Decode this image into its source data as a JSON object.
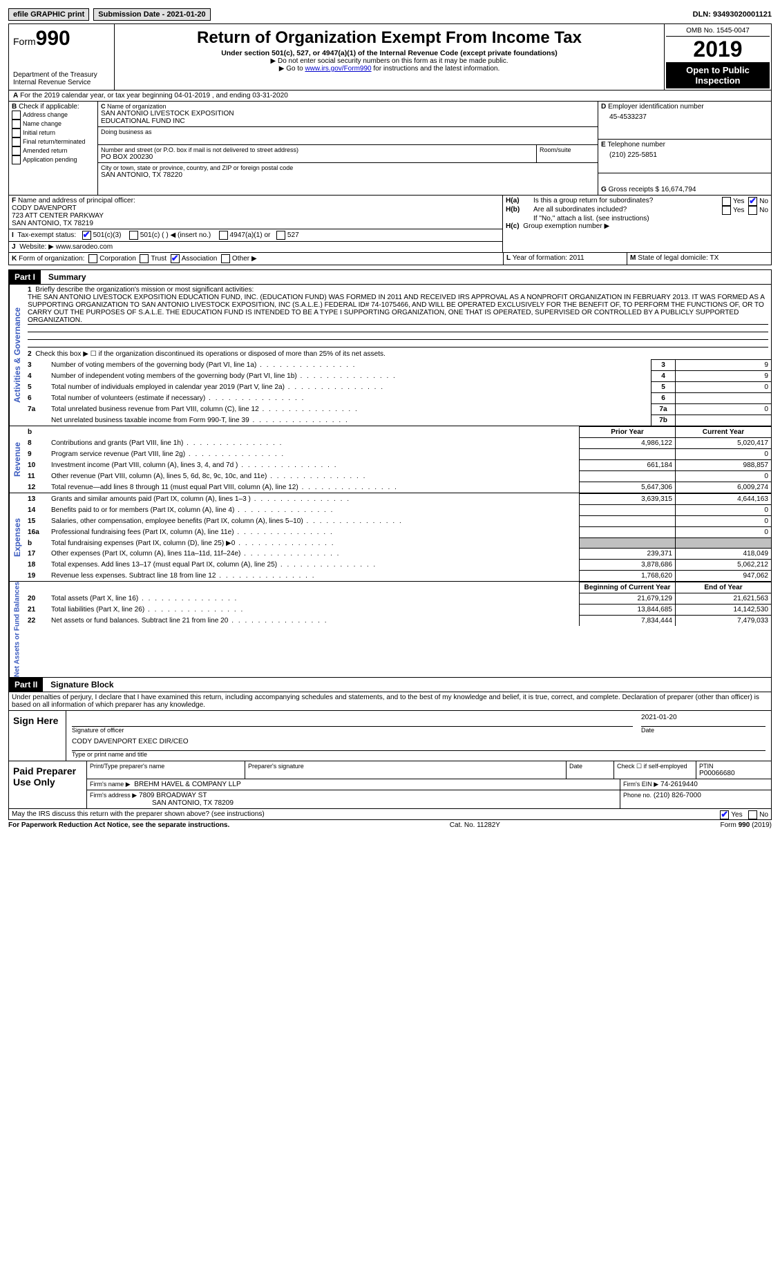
{
  "topbar": {
    "efile": "efile GRAPHIC print",
    "subdate_label": "Submission Date - 2021-01-20",
    "dln": "DLN: 93493020001121"
  },
  "header": {
    "form_label": "Form",
    "form_no": "990",
    "dept": "Department of the Treasury\nInternal Revenue Service",
    "title": "Return of Organization Exempt From Income Tax",
    "sub": "Under section 501(c), 527, or 4947(a)(1) of the Internal Revenue Code (except private foundations)",
    "note1": "▶ Do not enter social security numbers on this form as it may be made public.",
    "note2_pre": "▶ Go to ",
    "note2_link": "www.irs.gov/Form990",
    "note2_post": " for instructions and the latest information.",
    "omb": "OMB No. 1545-0047",
    "year": "2019",
    "open": "Open to Public Inspection"
  },
  "A": {
    "text": "For the 2019 calendar year, or tax year beginning 04-01-2019   , and ending 03-31-2020"
  },
  "B": {
    "label": "Check if applicable:",
    "items": [
      "Address change",
      "Name change",
      "Initial return",
      "Final return/terminated",
      "Amended return",
      "Application pending"
    ]
  },
  "C": {
    "name_lbl": "Name of organization",
    "name": "SAN ANTONIO LIVESTOCK EXPOSITION\nEDUCATIONAL FUND INC",
    "dba_lbl": "Doing business as",
    "addr_lbl": "Number and street (or P.O. box if mail is not delivered to street address)",
    "room_lbl": "Room/suite",
    "addr": "PO BOX 200230",
    "city_lbl": "City or town, state or province, country, and ZIP or foreign postal code",
    "city": "SAN ANTONIO, TX  78220"
  },
  "D": {
    "lbl": "Employer identification number",
    "val": "45-4533237"
  },
  "E": {
    "lbl": "Telephone number",
    "val": "(210) 225-5851"
  },
  "G": {
    "lbl": "Gross receipts $",
    "val": "16,674,794"
  },
  "F": {
    "lbl": "Name and address of principal officer:",
    "name": "CODY DAVENPORT",
    "addr1": "723 ATT CENTER PARKWAY",
    "addr2": "SAN ANTONIO, TX  78219"
  },
  "H": {
    "a_lbl": "Is this a group return for subordinates?",
    "b_lbl": "Are all subordinates included?",
    "b_note": "If \"No,\" attach a list. (see instructions)",
    "c_lbl": "Group exemption number ▶",
    "yes": "Yes",
    "no": "No"
  },
  "I": {
    "lbl": "Tax-exempt status:",
    "opts": [
      "501(c)(3)",
      "501(c) (  ) ◀ (insert no.)",
      "4947(a)(1) or",
      "527"
    ]
  },
  "J": {
    "lbl": "Website: ▶",
    "val": "www.sarodeo.com"
  },
  "K": {
    "lbl": "Form of organization:",
    "opts": [
      "Corporation",
      "Trust",
      "Association",
      "Other ▶"
    ],
    "checked": 2
  },
  "L": {
    "lbl": "Year of formation:",
    "val": "2011"
  },
  "M": {
    "lbl": "State of legal domicile:",
    "val": "TX"
  },
  "part1": {
    "hdr": "Part I",
    "title": "Summary",
    "q1_lbl": "Briefly describe the organization's mission or most significant activities:",
    "q1_txt": "THE SAN ANTONIO LIVESTOCK EXPOSITION EDUCATION FUND, INC. (EDUCATION FUND) WAS FORMED IN 2011 AND RECEIVED IRS APPROVAL AS A NONPROFIT ORGANIZATION IN FEBRUARY 2013. IT WAS FORMED AS A SUPPORTING ORGANIZATION TO SAN ANTONIO LIVESTOCK EXPOSITION, INC (S.A.L.E.) FEDERAL ID# 74-1075466, AND WILL BE OPERATED EXCLUSIVELY FOR THE BENEFIT OF, TO PERFORM THE FUNCTIONS OF, OR TO CARRY OUT THE PURPOSES OF S.A.L.E. THE EDUCATION FUND IS INTENDED TO BE A TYPE I SUPPORTING ORGANIZATION, ONE THAT IS OPERATED, SUPERVISED OR CONTROLLED BY A PUBLICLY SUPPORTED ORGANIZATION.",
    "q2": "Check this box ▶ ☐ if the organization discontinued its operations or disposed of more than 25% of its net assets.",
    "rows_ag": [
      {
        "n": "3",
        "t": "Number of voting members of the governing body (Part VI, line 1a)",
        "k": "3",
        "v": "9"
      },
      {
        "n": "4",
        "t": "Number of independent voting members of the governing body (Part VI, line 1b)",
        "k": "4",
        "v": "9"
      },
      {
        "n": "5",
        "t": "Total number of individuals employed in calendar year 2019 (Part V, line 2a)",
        "k": "5",
        "v": "0"
      },
      {
        "n": "6",
        "t": "Total number of volunteers (estimate if necessary)",
        "k": "6",
        "v": ""
      },
      {
        "n": "7a",
        "t": "Total unrelated business revenue from Part VIII, column (C), line 12",
        "k": "7a",
        "v": "0"
      },
      {
        "n": "",
        "t": "Net unrelated business taxable income from Form 990-T, line 39",
        "k": "7b",
        "v": ""
      }
    ],
    "prior_lbl": "Prior Year",
    "curr_lbl": "Current Year",
    "rev_rows": [
      {
        "n": "8",
        "t": "Contributions and grants (Part VIII, line 1h)",
        "p": "4,986,122",
        "c": "5,020,417"
      },
      {
        "n": "9",
        "t": "Program service revenue (Part VIII, line 2g)",
        "p": "",
        "c": "0"
      },
      {
        "n": "10",
        "t": "Investment income (Part VIII, column (A), lines 3, 4, and 7d )",
        "p": "661,184",
        "c": "988,857"
      },
      {
        "n": "11",
        "t": "Other revenue (Part VIII, column (A), lines 5, 6d, 8c, 9c, 10c, and 11e)",
        "p": "",
        "c": "0"
      },
      {
        "n": "12",
        "t": "Total revenue—add lines 8 through 11 (must equal Part VIII, column (A), line 12)",
        "p": "5,647,306",
        "c": "6,009,274"
      }
    ],
    "exp_rows": [
      {
        "n": "13",
        "t": "Grants and similar amounts paid (Part IX, column (A), lines 1–3 )",
        "p": "3,639,315",
        "c": "4,644,163"
      },
      {
        "n": "14",
        "t": "Benefits paid to or for members (Part IX, column (A), line 4)",
        "p": "",
        "c": "0"
      },
      {
        "n": "15",
        "t": "Salaries, other compensation, employee benefits (Part IX, column (A), lines 5–10)",
        "p": "",
        "c": "0"
      },
      {
        "n": "16a",
        "t": "Professional fundraising fees (Part IX, column (A), line 11e)",
        "p": "",
        "c": "0"
      },
      {
        "n": "b",
        "t": "Total fundraising expenses (Part IX, column (D), line 25) ▶0",
        "p": "GRAY",
        "c": "GRAY"
      },
      {
        "n": "17",
        "t": "Other expenses (Part IX, column (A), lines 11a–11d, 11f–24e)",
        "p": "239,371",
        "c": "418,049"
      },
      {
        "n": "18",
        "t": "Total expenses. Add lines 13–17 (must equal Part IX, column (A), line 25)",
        "p": "3,878,686",
        "c": "5,062,212"
      },
      {
        "n": "19",
        "t": "Revenue less expenses. Subtract line 18 from line 12",
        "p": "1,768,620",
        "c": "947,062"
      }
    ],
    "na_hdr_p": "Beginning of Current Year",
    "na_hdr_c": "End of Year",
    "na_rows": [
      {
        "n": "20",
        "t": "Total assets (Part X, line 16)",
        "p": "21,679,129",
        "c": "21,621,563"
      },
      {
        "n": "21",
        "t": "Total liabilities (Part X, line 26)",
        "p": "13,844,685",
        "c": "14,142,530"
      },
      {
        "n": "22",
        "t": "Net assets or fund balances. Subtract line 21 from line 20",
        "p": "7,834,444",
        "c": "7,479,033"
      }
    ]
  },
  "part2": {
    "hdr": "Part II",
    "title": "Signature Block",
    "decl": "Under penalties of perjury, I declare that I have examined this return, including accompanying schedules and statements, and to the best of my knowledge and belief, it is true, correct, and complete. Declaration of preparer (other than officer) is based on all information of which preparer has any knowledge.",
    "sign_here": "Sign Here",
    "sig_officer": "Signature of officer",
    "sig_date": "Date",
    "sig_date_val": "2021-01-20",
    "name_title": "CODY DAVENPORT  EXEC DIR/CEO",
    "name_title_lbl": "Type or print name and title",
    "paid": "Paid Preparer Use Only",
    "prep_name_lbl": "Print/Type preparer's name",
    "prep_sig_lbl": "Preparer's signature",
    "date_lbl": "Date",
    "check_lbl": "Check ☐ if self-employed",
    "ptin_lbl": "PTIN",
    "ptin": "P00066680",
    "firm_name_lbl": "Firm's name    ▶",
    "firm_name": "BREHM HAVEL & COMPANY LLP",
    "firm_ein_lbl": "Firm's EIN ▶",
    "firm_ein": "74-2619440",
    "firm_addr_lbl": "Firm's address ▶",
    "firm_addr1": "7809 BROADWAY ST",
    "firm_addr2": "SAN ANTONIO, TX  78209",
    "phone_lbl": "Phone no.",
    "phone": "(210) 826-7000",
    "discuss": "May the IRS discuss this return with the preparer shown above? (see instructions)",
    "yes": "Yes",
    "no": "No"
  },
  "footer": {
    "pra": "For Paperwork Reduction Act Notice, see the separate instructions.",
    "cat": "Cat. No. 11282Y",
    "form": "Form 990 (2019)"
  },
  "sidelabels": {
    "ag": "Activities & Governance",
    "rev": "Revenue",
    "exp": "Expenses",
    "na": "Net Assets or Fund Balances"
  }
}
